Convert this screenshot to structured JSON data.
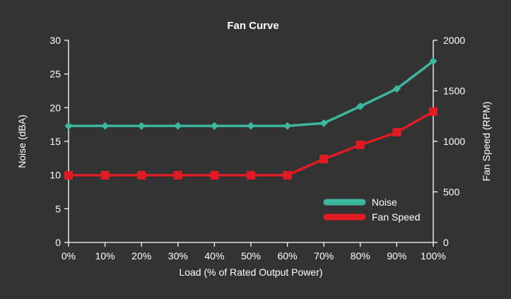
{
  "chart_data": {
    "type": "line",
    "title": "Fan Curve",
    "xlabel": "Load (% of Rated Output Power)",
    "ylabel": "Noise (dBA)",
    "y2label": "Fan Speed (RPM)",
    "categories": [
      "0%",
      "10%",
      "20%",
      "30%",
      "40%",
      "50%",
      "60%",
      "70%",
      "80%",
      "90%",
      "100%"
    ],
    "ylim": [
      0,
      30
    ],
    "y2lim": [
      0,
      2000
    ],
    "yticks": [
      "0",
      "5",
      "10",
      "15",
      "20",
      "25",
      "30"
    ],
    "y2ticks": [
      "0",
      "500",
      "1000",
      "1500",
      "2000"
    ],
    "series": [
      {
        "name": "Noise",
        "axis": "left",
        "marker": "diamond",
        "color": "#3fb6a0",
        "values": [
          17.3,
          17.3,
          17.3,
          17.3,
          17.3,
          17.3,
          17.3,
          17.7,
          20.2,
          22.8,
          26.9
        ]
      },
      {
        "name": "Fan Speed",
        "axis": "right",
        "marker": "square",
        "color": "#e01b23",
        "values": [
          665,
          665,
          665,
          665,
          665,
          665,
          665,
          825,
          965,
          1090,
          1295
        ]
      }
    ],
    "grid": false,
    "legend_position": "bottom-right",
    "axis_color": "#ffffff",
    "background": "#333333"
  }
}
